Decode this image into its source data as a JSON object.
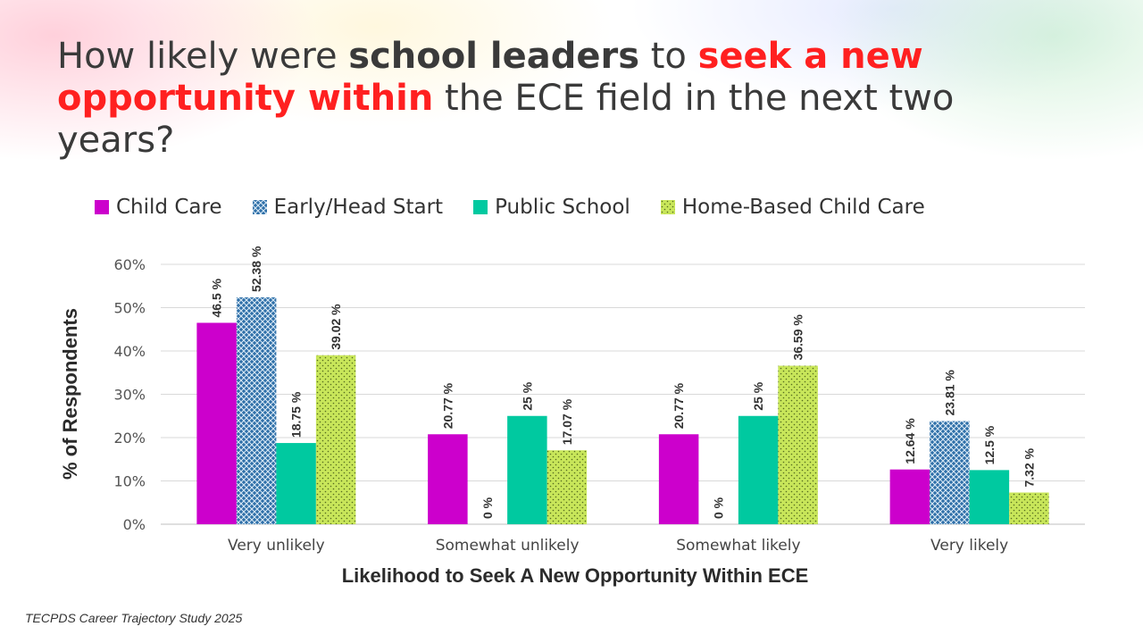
{
  "title": {
    "part1": "How likely were ",
    "part2": "school leaders",
    "part3": " to ",
    "part4": "seek a new opportunity within",
    "part5": " the ECE field in the next two years?"
  },
  "source": "TECPDS Career Trajectory Study 2025",
  "colors": {
    "child_care": "#cc00cc",
    "early_head_start": "#2e6fa8",
    "public_school": "#00c9a0",
    "home_based": "#c8e65a"
  },
  "chart_data": {
    "type": "bar",
    "title": "How likely were school leaders to seek a new opportunity within the ECE field in the next two years?",
    "xlabel": "Likelihood to Seek A New Opportunity Within ECE",
    "ylabel": "% of Respondents",
    "ylim": [
      0,
      60
    ],
    "yticks": [
      0,
      10,
      20,
      30,
      40,
      50,
      60
    ],
    "ytick_labels": [
      "0%",
      "10%",
      "20%",
      "30%",
      "40%",
      "50%",
      "60%"
    ],
    "grid": true,
    "legend_position": "top",
    "categories": [
      "Very unlikely",
      "Somewhat unlikely",
      "Somewhat likely",
      "Very likely"
    ],
    "series": [
      {
        "name": "Child Care",
        "values": [
          46.5,
          20.77,
          20.77,
          12.64
        ],
        "labels": [
          "46.5 %",
          "20.77 %",
          "20.77 %",
          "12.64 %"
        ]
      },
      {
        "name": "Early/Head Start",
        "values": [
          52.38,
          0,
          0,
          23.81
        ],
        "labels": [
          "52.38 %",
          "0 %",
          "0 %",
          "23.81 %"
        ]
      },
      {
        "name": "Public School",
        "values": [
          18.75,
          25,
          25,
          12.5
        ],
        "labels": [
          "18.75 %",
          "25 %",
          "25 %",
          "12.5 %"
        ]
      },
      {
        "name": "Home-Based Child Care",
        "values": [
          39.02,
          17.07,
          36.59,
          7.32
        ],
        "labels": [
          "39.02 %",
          "17.07 %",
          "36.59 %",
          "7.32 %"
        ]
      }
    ]
  }
}
